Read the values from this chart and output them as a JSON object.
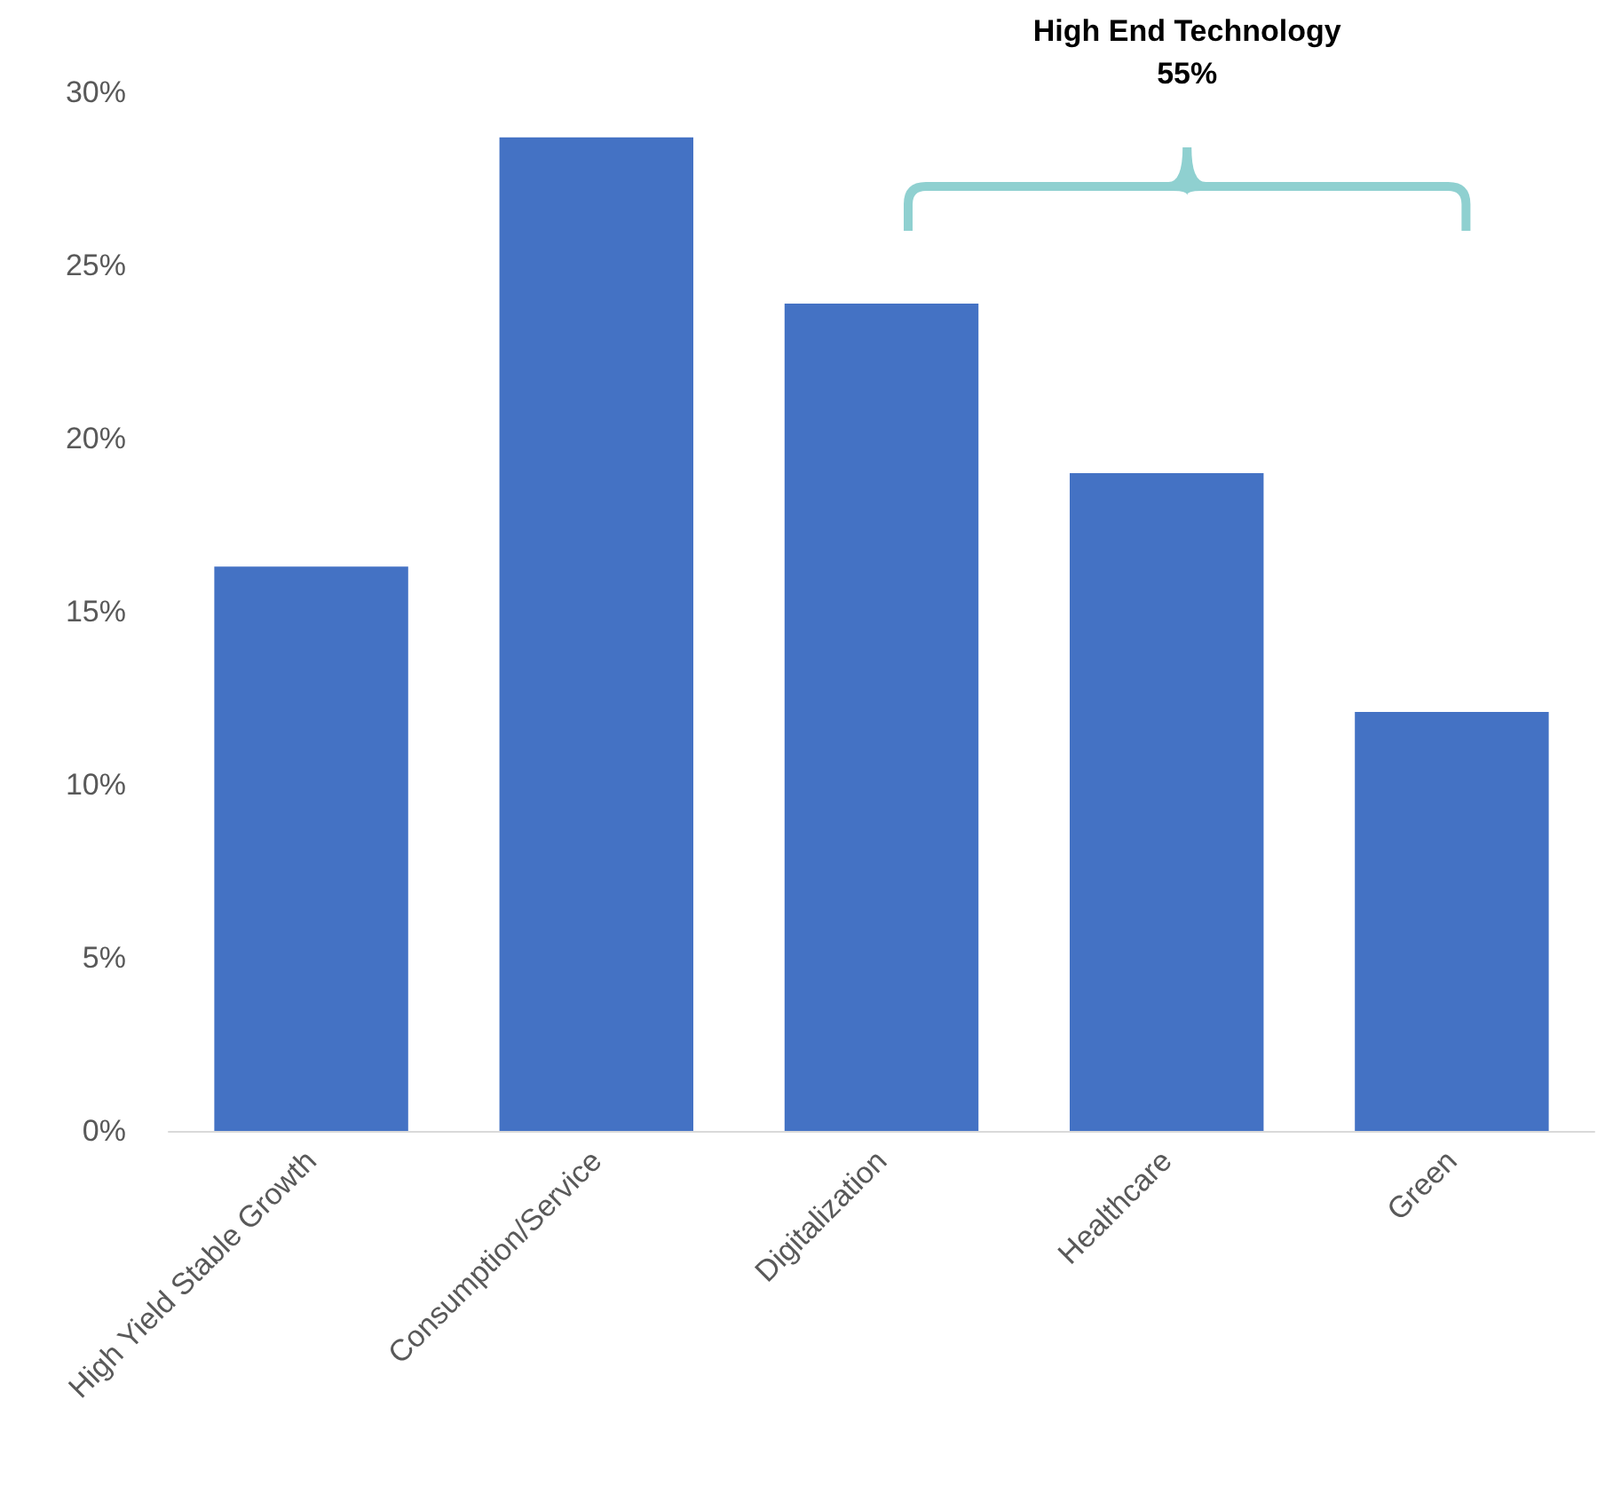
{
  "chart_data": {
    "type": "bar",
    "categories": [
      "High Yield Stable Growth",
      "Consumption/Service",
      "Digitalization",
      "Healthcare",
      "Green"
    ],
    "values": [
      16.3,
      28.7,
      23.9,
      19.0,
      12.1
    ],
    "color": "#4472c4",
    "ylim": [
      0,
      30
    ],
    "yticks": [
      {
        "value": 0,
        "label": "0%"
      },
      {
        "value": 5,
        "label": "5%"
      },
      {
        "value": 10,
        "label": "10%"
      },
      {
        "value": 15,
        "label": "15%"
      },
      {
        "value": 20,
        "label": "20%"
      },
      {
        "value": 25,
        "label": "25%"
      },
      {
        "value": 30,
        "label": "30%"
      }
    ],
    "annotations": [
      "High End Technology",
      "55%"
    ]
  }
}
